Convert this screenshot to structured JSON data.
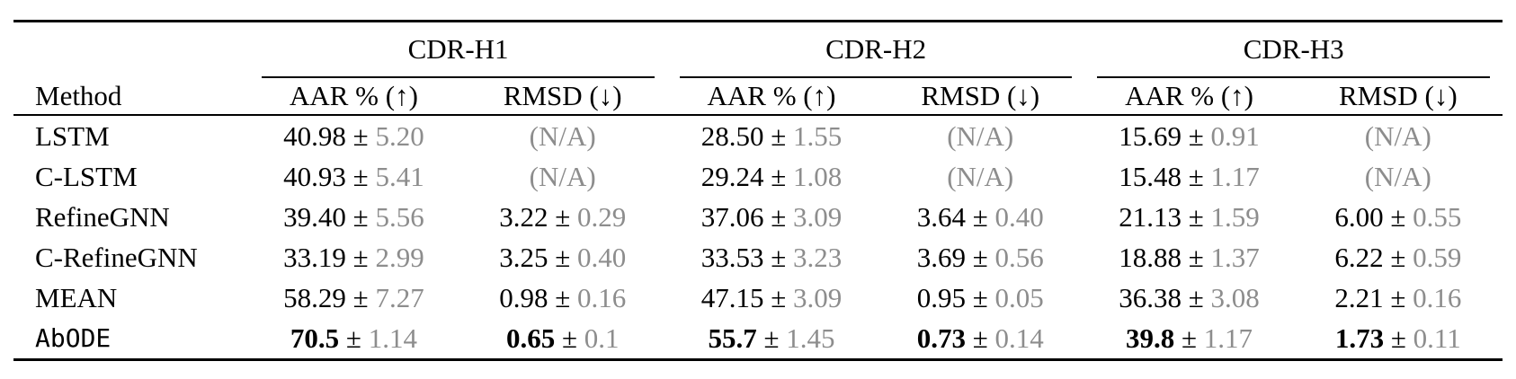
{
  "table": {
    "pm": "±",
    "method_header": "Method",
    "aar_header": "AAR % (↑)",
    "rmsd_header": "RMSD (↓)",
    "groups": [
      {
        "label": "CDR-H1"
      },
      {
        "label": "CDR-H2"
      },
      {
        "label": "CDR-H3"
      }
    ],
    "rows": [
      {
        "method": "LSTM",
        "cells": [
          {
            "mean": "40.98",
            "std": "5.20"
          },
          {
            "na": "(N/A)"
          },
          {
            "mean": "28.50",
            "std": "1.55"
          },
          {
            "na": "(N/A)"
          },
          {
            "mean": "15.69",
            "std": "0.91"
          },
          {
            "na": "(N/A)"
          }
        ]
      },
      {
        "method": "C-LSTM",
        "cells": [
          {
            "mean": "40.93",
            "std": "5.41"
          },
          {
            "na": "(N/A)"
          },
          {
            "mean": "29.24",
            "std": "1.08"
          },
          {
            "na": "(N/A)"
          },
          {
            "mean": "15.48",
            "std": "1.17"
          },
          {
            "na": "(N/A)"
          }
        ]
      },
      {
        "method": "RefineGNN",
        "cells": [
          {
            "mean": "39.40",
            "std": "5.56"
          },
          {
            "mean": "3.22",
            "std": "0.29"
          },
          {
            "mean": "37.06",
            "std": "3.09"
          },
          {
            "mean": "3.64",
            "std": "0.40"
          },
          {
            "mean": "21.13",
            "std": "1.59"
          },
          {
            "mean": "6.00",
            "std": "0.55"
          }
        ]
      },
      {
        "method": "C-RefineGNN",
        "cells": [
          {
            "mean": "33.19",
            "std": "2.99"
          },
          {
            "mean": "3.25",
            "std": "0.40"
          },
          {
            "mean": "33.53",
            "std": "3.23"
          },
          {
            "mean": "3.69",
            "std": "0.56"
          },
          {
            "mean": "18.88",
            "std": "1.37"
          },
          {
            "mean": "6.22",
            "std": "0.59"
          }
        ]
      },
      {
        "method": "MEAN",
        "cells": [
          {
            "mean": "58.29",
            "std": "7.27"
          },
          {
            "mean": "0.98",
            "std": "0.16"
          },
          {
            "mean": "47.15",
            "std": "3.09"
          },
          {
            "mean": "0.95",
            "std": "0.05"
          },
          {
            "mean": "36.38",
            "std": "3.08"
          },
          {
            "mean": "2.21",
            "std": "0.16"
          }
        ]
      },
      {
        "method": "AbODE",
        "cells": [
          {
            "mean": "70.5",
            "std": "1.14"
          },
          {
            "mean": "0.65",
            "std": "0.1"
          },
          {
            "mean": "55.7",
            "std": "1.45"
          },
          {
            "mean": "0.73",
            "std": "0.14"
          },
          {
            "mean": "39.8",
            "std": "1.17"
          },
          {
            "mean": "1.73",
            "std": "0.11"
          }
        ]
      }
    ]
  },
  "colors": {
    "text": "#000000",
    "std_gray": "#8d8d8d",
    "background": "#ffffff",
    "rule": "#000000"
  }
}
